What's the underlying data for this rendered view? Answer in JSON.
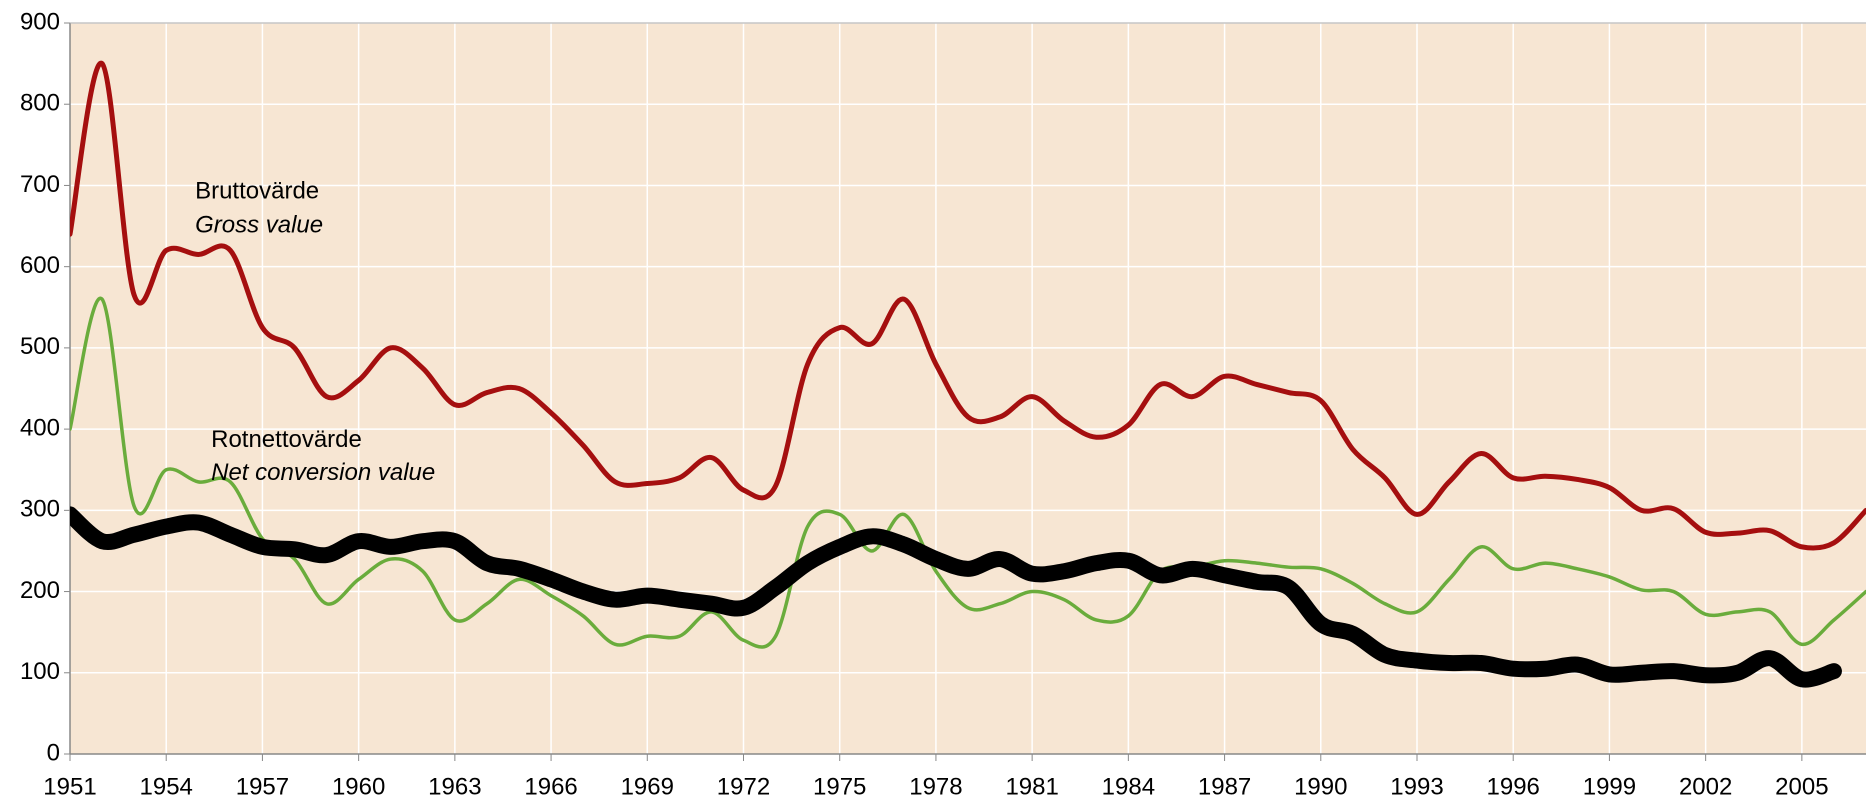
{
  "chart_data": {
    "type": "line",
    "x": [
      1951,
      1952,
      1953,
      1954,
      1955,
      1956,
      1957,
      1958,
      1959,
      1960,
      1961,
      1962,
      1963,
      1964,
      1965,
      1966,
      1967,
      1968,
      1969,
      1970,
      1971,
      1972,
      1973,
      1974,
      1975,
      1976,
      1977,
      1978,
      1979,
      1980,
      1981,
      1982,
      1983,
      1984,
      1985,
      1986,
      1987,
      1988,
      1989,
      1990,
      1991,
      1992,
      1993,
      1994,
      1995,
      1996,
      1997,
      1998,
      1999,
      2000,
      2001,
      2002,
      2003,
      2004,
      2005,
      2006,
      2007
    ],
    "series": [
      {
        "color": "#a50f0f",
        "width": 5,
        "values": [
          640,
          850,
          565,
          620,
          615,
          620,
          525,
          500,
          440,
          460,
          500,
          475,
          430,
          445,
          450,
          420,
          380,
          335,
          333,
          340,
          365,
          325,
          330,
          480,
          525,
          505,
          560,
          480,
          415,
          415,
          440,
          410,
          390,
          405,
          455,
          440,
          465,
          455,
          445,
          435,
          375,
          340,
          295,
          335,
          370,
          340,
          342,
          338,
          328,
          300,
          302,
          273,
          272,
          275,
          255,
          260,
          300
        ]
      },
      {
        "color": "#6aac3c",
        "width": 3.5,
        "values": [
          400,
          560,
          305,
          350,
          335,
          335,
          265,
          240,
          185,
          215,
          240,
          225,
          165,
          185,
          215,
          195,
          170,
          135,
          145,
          145,
          175,
          140,
          145,
          280,
          295,
          250,
          295,
          225,
          180,
          185,
          200,
          190,
          165,
          170,
          225,
          230,
          238,
          235,
          230,
          228,
          210,
          185,
          175,
          215,
          255,
          228,
          235,
          228,
          218,
          202,
          200,
          172,
          175,
          175,
          135,
          165,
          200
        ]
      },
      {
        "color": "#000000",
        "width": 16,
        "values": [
          295,
          262,
          270,
          280,
          285,
          270,
          255,
          252,
          245,
          262,
          255,
          262,
          262,
          235,
          228,
          215,
          200,
          190,
          195,
          190,
          185,
          180,
          205,
          235,
          255,
          268,
          258,
          240,
          228,
          240,
          222,
          225,
          235,
          238,
          220,
          228,
          220,
          212,
          205,
          160,
          148,
          122,
          115,
          112,
          112,
          105,
          105,
          110,
          98,
          100,
          102,
          97,
          100,
          118,
          92,
          102,
          null
        ]
      }
    ],
    "annotations": [
      {
        "text": "Bruttovärde",
        "x": 1954.9,
        "y": 692
      },
      {
        "text": "Gross value",
        "x": 1954.9,
        "y": 650,
        "italic": true,
        "color": "#a50f0f"
      },
      {
        "text": "Rotnettovärde",
        "x": 1955.4,
        "y": 386
      },
      {
        "text": "Net conversion value",
        "x": 1955.4,
        "y": 345,
        "italic": true,
        "color": "#a50f0f"
      }
    ],
    "xlim": [
      1951,
      2007
    ],
    "ylim": [
      0,
      900
    ],
    "xticks": [
      1951,
      1954,
      1957,
      1960,
      1963,
      1966,
      1969,
      1972,
      1975,
      1978,
      1981,
      1984,
      1987,
      1990,
      1993,
      1996,
      1999,
      2002,
      2005
    ],
    "yticks": [
      0,
      100,
      200,
      300,
      400,
      500,
      600,
      700,
      800,
      900
    ],
    "grid": true,
    "background": "#f7e6d3"
  }
}
